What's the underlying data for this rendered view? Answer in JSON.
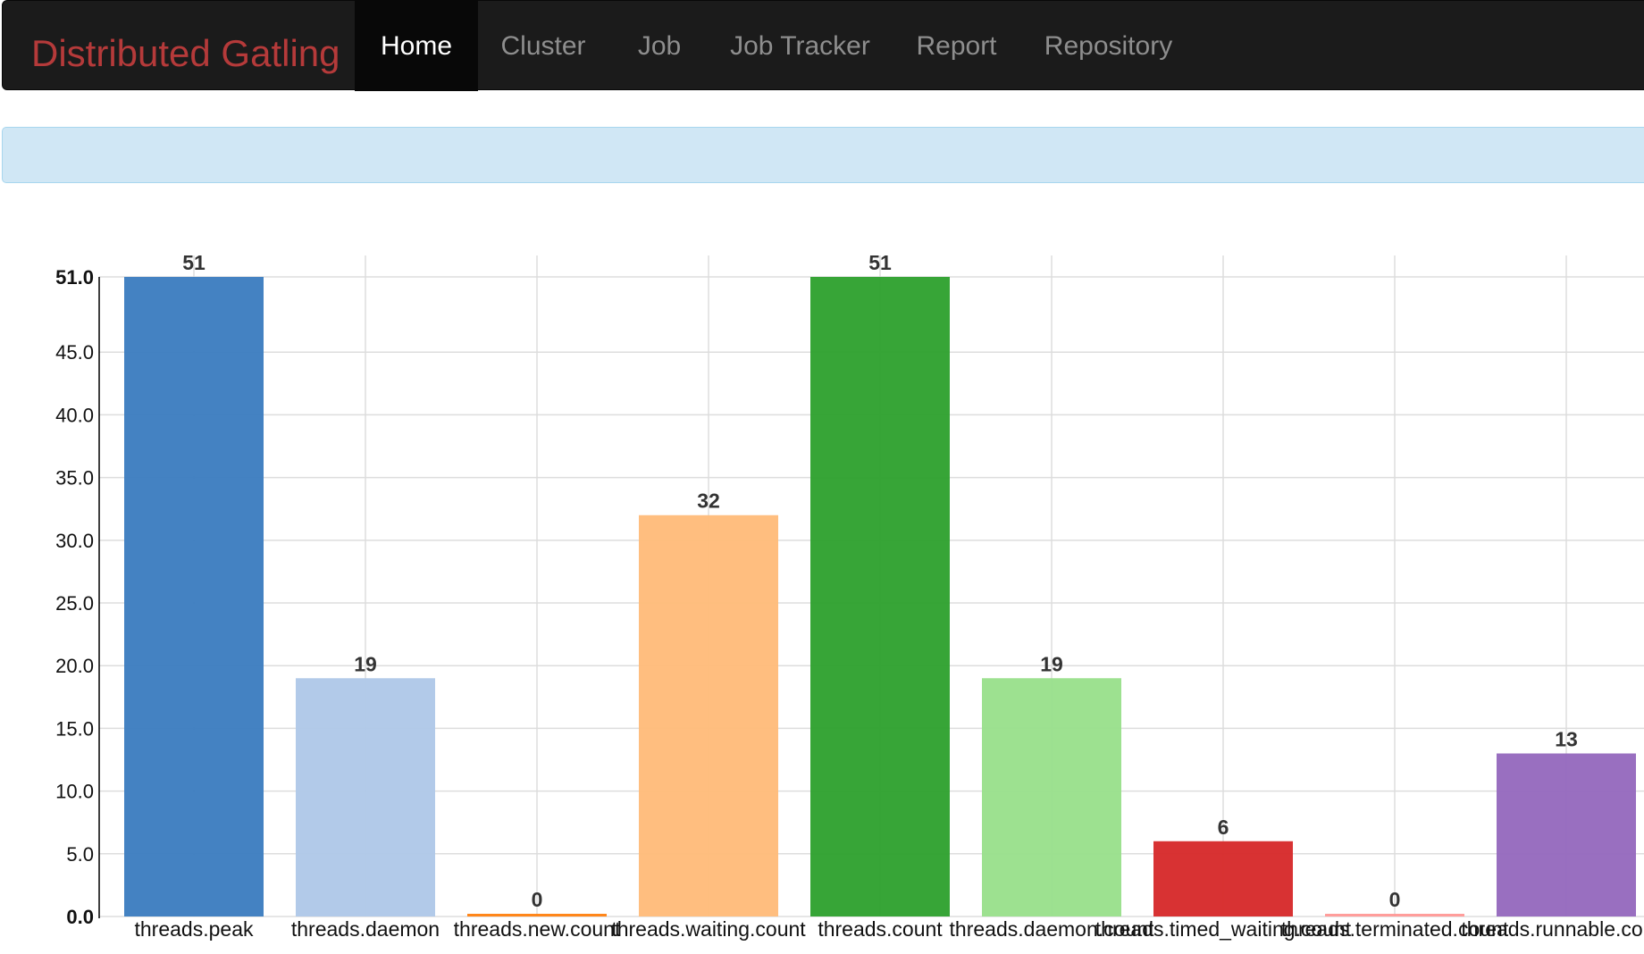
{
  "navbar": {
    "brand": "Distributed Gatling",
    "items": [
      {
        "label": "Home",
        "active": true
      },
      {
        "label": "Cluster",
        "active": false
      },
      {
        "label": "Job",
        "active": false
      },
      {
        "label": "Job Tracker",
        "active": false
      },
      {
        "label": "Report",
        "active": false
      },
      {
        "label": "Repository",
        "active": false
      }
    ],
    "colors": {
      "background": "#1b1b1b",
      "brand": "#b53a3a",
      "active_text": "#ffffff",
      "text": "#8e8e8e"
    }
  },
  "info_bar": {
    "text": "",
    "color": "#d0e7f5"
  },
  "chart_data": {
    "type": "bar",
    "title": "",
    "xlabel": "",
    "ylabel": "",
    "categories": [
      "threads.peak",
      "threads.daemon",
      "threads.new.count",
      "threads.waiting.count",
      "threads.count",
      "threads.daemon.count",
      "threads.timed_waiting.count",
      "threads.terminated.count",
      "threads.runnable.count"
    ],
    "values": [
      51,
      19,
      0,
      32,
      51,
      19,
      6,
      0,
      13
    ],
    "value_labels": [
      "51",
      "19",
      "0",
      "32",
      "51",
      "19",
      "6",
      "0",
      "13"
    ],
    "colors": [
      "#3a7bbf",
      "#aec7e8",
      "#ff7f0e",
      "#ffbb78",
      "#2ca02c",
      "#98df8a",
      "#d62728",
      "#ff9896",
      "#9467bd"
    ],
    "yticks": [
      "0.0",
      "5.0",
      "10.0",
      "15.0",
      "20.0",
      "25.0",
      "30.0",
      "35.0",
      "40.0",
      "45.0",
      "51.0"
    ],
    "ytick_values": [
      0,
      5,
      10,
      15,
      20,
      25,
      30,
      35,
      40,
      45,
      51
    ],
    "ylim": [
      0,
      51
    ],
    "grid": true,
    "legend": "none"
  }
}
